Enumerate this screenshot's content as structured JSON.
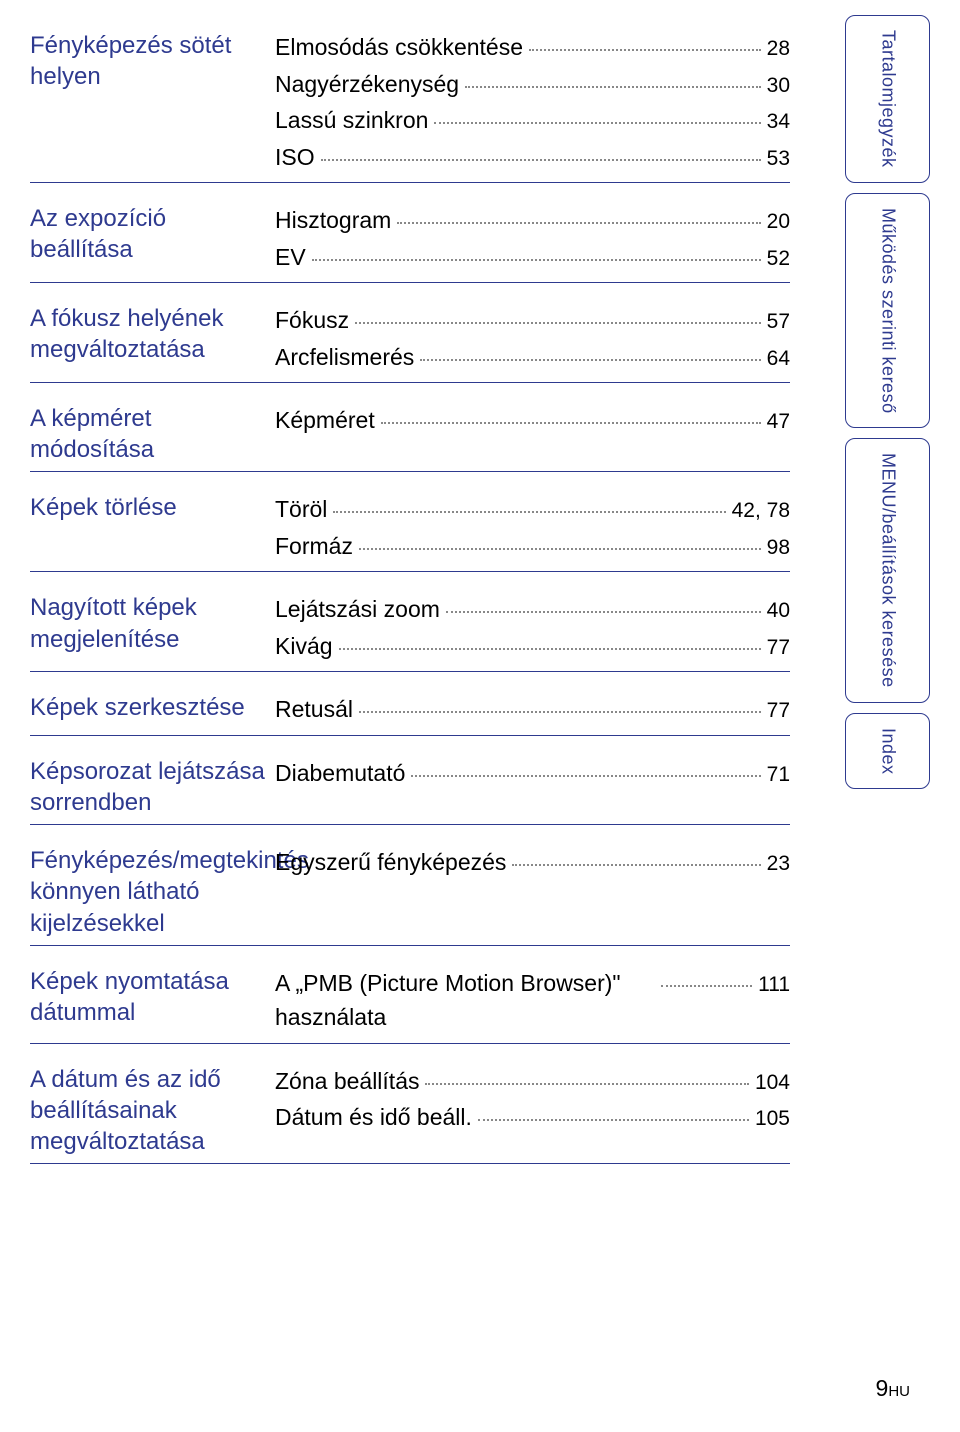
{
  "sections": [
    {
      "title": "Fényképezés sötét helyen",
      "items": [
        {
          "label": "Elmosódás csökkentése",
          "page": "28"
        },
        {
          "label": "Nagyérzékenység",
          "page": "30"
        },
        {
          "label": "Lassú szinkron",
          "page": "34"
        },
        {
          "label": "ISO",
          "page": "53"
        }
      ]
    },
    {
      "title": "Az expozíció beállítása",
      "items": [
        {
          "label": "Hisztogram",
          "page": "20"
        },
        {
          "label": "EV",
          "page": "52"
        }
      ]
    },
    {
      "title": "A fókusz helyének megváltoztatása",
      "items": [
        {
          "label": "Fókusz",
          "page": "57"
        },
        {
          "label": "Arcfelismerés",
          "page": "64"
        }
      ]
    },
    {
      "title": "A képméret módosítása",
      "items": [
        {
          "label": "Képméret",
          "page": "47"
        }
      ]
    },
    {
      "title": "Képek törlése",
      "items": [
        {
          "label": "Töröl",
          "page": "42, 78"
        },
        {
          "label": "Formáz",
          "page": "98"
        }
      ]
    },
    {
      "title": "Nagyított képek megjelenítése",
      "items": [
        {
          "label": "Lejátszási zoom",
          "page": "40"
        },
        {
          "label": "Kivág",
          "page": "77"
        }
      ]
    },
    {
      "title": "Képek szerkesztése",
      "items": [
        {
          "label": "Retusál",
          "page": "77"
        }
      ]
    },
    {
      "title": "Képsorozat lejátszása sorrendben",
      "items": [
        {
          "label": "Diabemutató",
          "page": "71"
        }
      ]
    },
    {
      "title": "Fényképezés/megtekintés könnyen látható kijelzésekkel",
      "items": [
        {
          "label": "Egyszerű fényképezés",
          "page": "23"
        }
      ]
    },
    {
      "title": "Képek nyomtatása dátummal",
      "items": [
        {
          "label": "A „PMB (Picture Motion Browser)\" használata",
          "page": "111"
        }
      ]
    },
    {
      "title": "A dátum és az idő beállításainak megváltoztatása",
      "items": [
        {
          "label": "Zóna beállítás",
          "page": "104"
        },
        {
          "label": "Dátum és idő beáll.",
          "page": "105"
        }
      ]
    }
  ],
  "tabs": [
    {
      "label": "Tartalomjegyzék",
      "class": "tab-single"
    },
    {
      "label": "Működés szerinti kereső",
      "class": "tab-double"
    },
    {
      "label": "MENU/beállítások keresése",
      "class": "tab-double2"
    },
    {
      "label": "Index",
      "class": "tab-index"
    }
  ],
  "page_num": "9",
  "page_suffix": "HU",
  "colors": {
    "primary": "#2e3a8f",
    "text": "#000000",
    "background": "#ffffff"
  }
}
